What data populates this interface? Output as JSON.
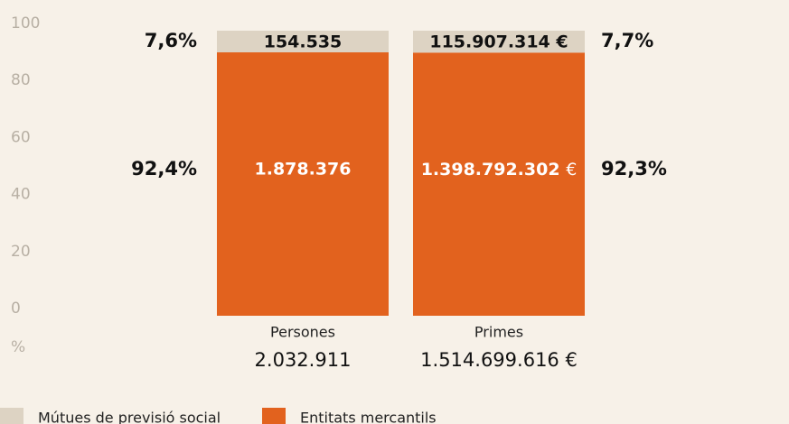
{
  "chart_data": {
    "type": "stacked_bar",
    "y_axis_label": "%",
    "categories": [
      "Persones",
      "Primes"
    ],
    "total_labels": [
      "2.032.911",
      "1.514.699.616 €"
    ],
    "ylim": [
      0,
      100
    ],
    "yticks": [
      0,
      20,
      40,
      60,
      80,
      100
    ],
    "grid": false,
    "series": [
      {
        "name": "Mútues de previsió social",
        "color": "#ddd3c3",
        "values": [
          7.6,
          7.7
        ],
        "value_labels": [
          "7,6%",
          "7,7%"
        ],
        "amount_labels": [
          "154.535",
          "115.907.314 €"
        ]
      },
      {
        "name": "Entitats mercantils",
        "color": "#e2621e",
        "values": [
          92.4,
          92.3
        ],
        "value_labels": [
          "92,4%",
          "92,3%"
        ],
        "amount_labels": [
          "1.878.376",
          "1.398.792.302 €"
        ]
      }
    ],
    "legend": "bottom-left"
  }
}
